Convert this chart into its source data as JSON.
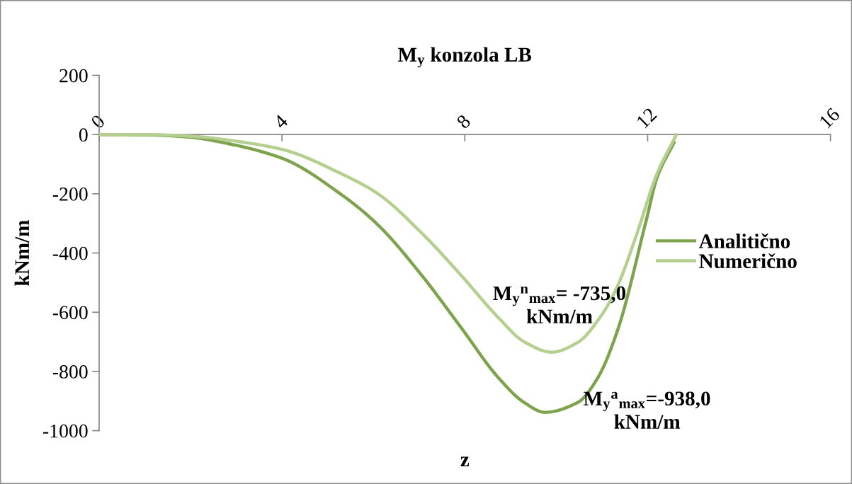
{
  "chart_data": {
    "type": "line",
    "title": "M$_{y}$ konzola LB",
    "xlabel": "z",
    "ylabel": "kNm/m",
    "xlim": [
      0,
      16
    ],
    "xticks": [
      0,
      4,
      8,
      12,
      16
    ],
    "ylim": [
      -1000,
      200
    ],
    "yticks": [
      -1000,
      -800,
      -600,
      -400,
      -200,
      0,
      200
    ],
    "legend": "right",
    "series": [
      {
        "name": "Analitično",
        "color": "#7ea34d",
        "x": [
          0,
          1,
          2,
          2.74,
          4,
          5.32,
          6.1,
          7.04,
          7.9,
          8.75,
          9.3,
          9.75,
          10.47,
          10.9,
          11.34,
          11.98,
          12.2,
          12.58
        ],
        "values": [
          0,
          -1,
          -9,
          -28,
          -80,
          -205,
          -305,
          -472,
          -648,
          -824,
          -905,
          -938,
          -905,
          -824,
          -662,
          -283,
          -148,
          -26
        ]
      },
      {
        "name": "Numerično",
        "color": "#b4cf8f",
        "x": [
          0,
          1,
          2.23,
          2.74,
          4,
          5.32,
          6.1,
          7.04,
          7.9,
          8.75,
          9.3,
          9.9,
          10.47,
          11.0,
          11.34,
          11.76,
          12.2,
          12.63
        ],
        "values": [
          0,
          0,
          -8,
          -17,
          -50,
          -134,
          -200,
          -330,
          -472,
          -621,
          -700,
          -735,
          -702,
          -608,
          -512,
          -337,
          -134,
          0
        ]
      }
    ],
    "annotations": [
      {
        "text": "M$_{y}$$^{n}$$_{max}$= -735,0\nkNm/m",
        "x": 9.9,
        "y": -735
      },
      {
        "text": "M$_{y}$$^{a}$$_{max}$=-938,0\nkNm/m",
        "x": 9.75,
        "y": -938
      }
    ]
  }
}
